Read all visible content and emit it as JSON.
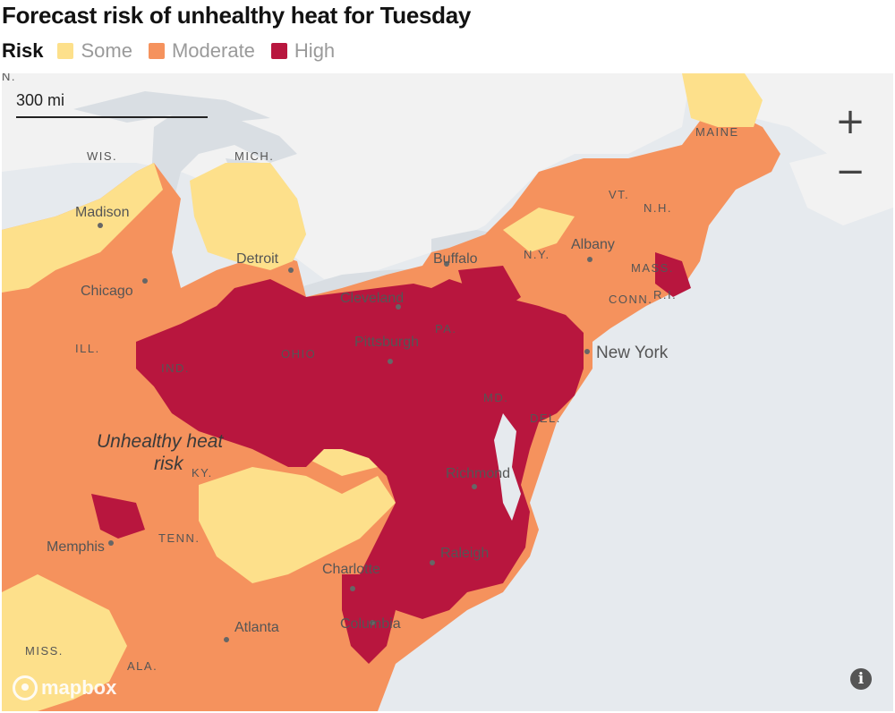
{
  "title": "Forecast risk of unhealthy heat for Tuesday",
  "legend": {
    "title": "Risk",
    "items": [
      {
        "label": "Some",
        "color": "#fde08b"
      },
      {
        "label": "Moderate",
        "color": "#f5925d"
      },
      {
        "label": "High",
        "color": "#b8163e"
      }
    ]
  },
  "map": {
    "scale_label": "300 mi",
    "zoom_in": "+",
    "zoom_out": "−",
    "attribution": "mapbox",
    "info": "i",
    "annotation": {
      "line1": "Unhealthy heat",
      "line2": "risk"
    },
    "state_labels": {
      "wis": "WIS.",
      "mich": "MICH.",
      "ill": "ILL.",
      "ind": "IND.",
      "ohio": "OHIO",
      "pa": "PA.",
      "ny": "N.Y.",
      "vt": "VT.",
      "nh": "N.H.",
      "maine": "MAINE",
      "mass": "MASS.",
      "conn": "CONN.",
      "ri": "R.I.",
      "md": "MD.",
      "del": "DEL.",
      "ky": "KY.",
      "tenn": "TENN.",
      "miss": "MISS.",
      "ala": "ALA.",
      "top_left": "N."
    },
    "city_labels": {
      "madison": "Madison",
      "chicago": "Chicago",
      "detroit": "Detroit",
      "cleveland": "Cleveland",
      "buffalo": "Buffalo",
      "albany": "Albany",
      "pittsburgh": "Pittsburgh",
      "new_york": "New York",
      "richmond": "Richmond",
      "memphis": "Memphis",
      "charlotte": "Charlotte",
      "raleigh": "Raleigh",
      "columbia": "Columbia",
      "atlanta": "Atlanta"
    }
  }
}
